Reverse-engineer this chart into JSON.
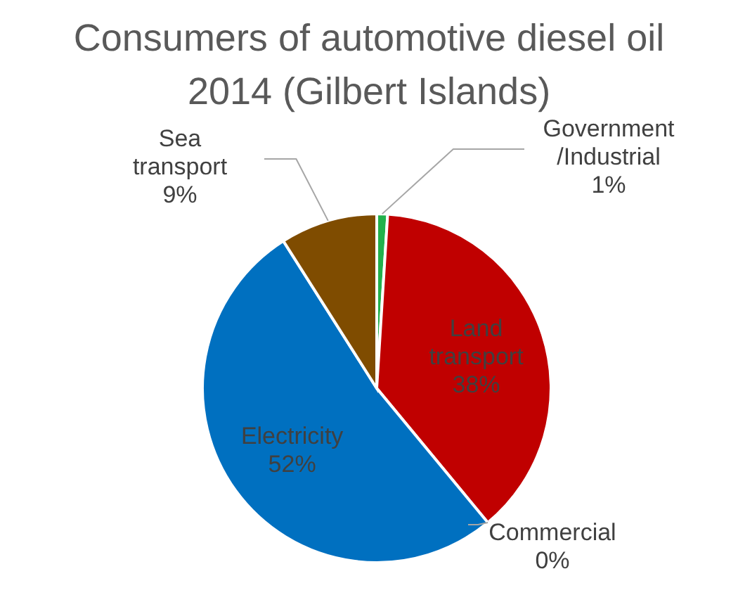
{
  "chart_data": {
    "type": "pie",
    "title": "Consumers of automotive diesel oil 2014 (Gilbert Islands)",
    "categories": [
      "Government /Industrial",
      "Land transport",
      "Commercial",
      "Electricity",
      "Sea transport"
    ],
    "values": [
      1,
      38,
      0,
      52,
      9
    ],
    "colors": [
      "#22b14c",
      "#c00000",
      "#7030a0",
      "#0070c0",
      "#7f4c00"
    ],
    "value_labels": [
      "1%",
      "38%",
      "0%",
      "52%",
      "9%"
    ]
  }
}
